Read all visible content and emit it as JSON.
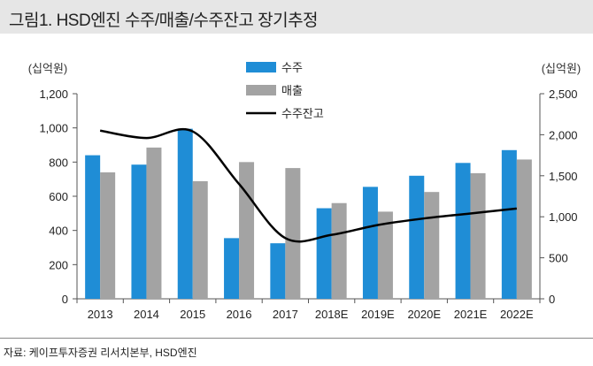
{
  "header": {
    "title": "그림1. HSD엔진 수주/매출/수주잔고 장기추정"
  },
  "source_note": "자료: 케이프투자증권 리서치본부, HSD엔진",
  "colors": {
    "orders": "#1f8dd6",
    "sales": "#a3a3a3",
    "backlog": "#000000",
    "axis": "#555555",
    "header_bg": "#e6e6e6"
  },
  "chart_data": {
    "type": "bar",
    "categories": [
      "2013",
      "2014",
      "2015",
      "2016",
      "2017",
      "2018E",
      "2019E",
      "2020E",
      "2021E",
      "2022E"
    ],
    "series": [
      {
        "name": "수주",
        "type": "bar",
        "axis": "left",
        "values": [
          840,
          785,
          995,
          355,
          325,
          530,
          655,
          720,
          795,
          870
        ]
      },
      {
        "name": "매출",
        "type": "bar",
        "axis": "left",
        "values": [
          740,
          885,
          688,
          800,
          765,
          560,
          510,
          625,
          735,
          815
        ]
      },
      {
        "name": "수주잔고",
        "type": "line",
        "axis": "right",
        "values": [
          2050,
          1960,
          2040,
          1400,
          740,
          780,
          900,
          980,
          1040,
          1100
        ]
      }
    ],
    "ylabel": "(십억원)",
    "ylabel_right": "(십억원)",
    "ylim": [
      0,
      1200
    ],
    "ylim_right": [
      0,
      2500
    ],
    "yticks": [
      "0",
      "200",
      "400",
      "600",
      "800",
      "1,000",
      "1,200"
    ],
    "yticks_right": [
      "0",
      "500",
      "1,000",
      "1,500",
      "2,000",
      "2,500"
    ],
    "legend": [
      "수주",
      "매출",
      "수주잔고"
    ],
    "legend_position": "top-center",
    "grid": false
  }
}
